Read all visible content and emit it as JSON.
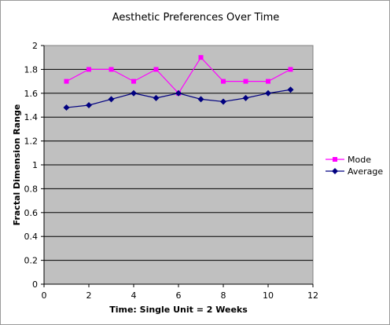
{
  "chart_data": {
    "type": "line",
    "title": "Aesthetic Preferences Over Time",
    "xlabel": "Time: Single Unit = 2 Weeks",
    "ylabel": "Fractal Dimension Range",
    "xlim": [
      0,
      12
    ],
    "ylim": [
      0,
      2
    ],
    "xticks": [
      0,
      2,
      4,
      6,
      8,
      10,
      12
    ],
    "yticks": [
      0,
      0.2,
      0.4,
      0.6,
      0.8,
      1,
      1.2,
      1.4,
      1.6,
      1.8,
      2
    ],
    "grid": "horizontal",
    "legend_position": "right",
    "x": [
      1,
      2,
      3,
      4,
      5,
      6,
      7,
      8,
      9,
      10,
      11
    ],
    "series": [
      {
        "name": "Mode",
        "color": "#ff00ff",
        "marker": "square",
        "values": [
          1.7,
          1.8,
          1.8,
          1.7,
          1.8,
          1.6,
          1.9,
          1.7,
          1.7,
          1.7,
          1.8
        ]
      },
      {
        "name": "Average",
        "color": "#000080",
        "marker": "diamond",
        "values": [
          1.48,
          1.5,
          1.55,
          1.6,
          1.56,
          1.6,
          1.55,
          1.53,
          1.56,
          1.6,
          1.63
        ]
      }
    ]
  }
}
